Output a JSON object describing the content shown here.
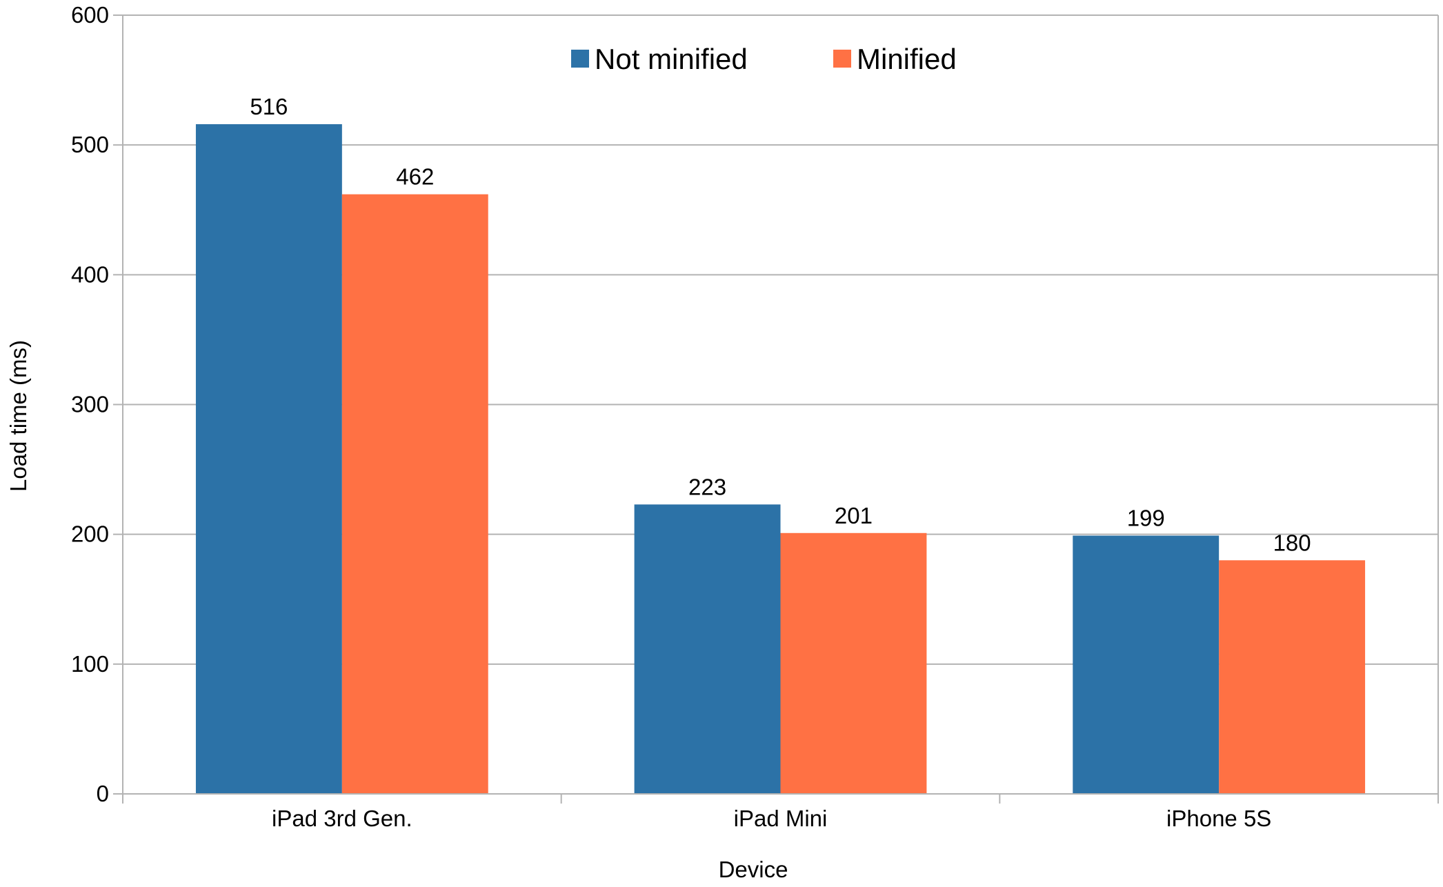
{
  "chart_data": {
    "type": "bar",
    "title": "",
    "xlabel": "Device",
    "ylabel": "Load time (ms)",
    "categories": [
      "iPad 3rd Gen.",
      "iPad Mini",
      "iPhone 5S"
    ],
    "series": [
      {
        "name": "Not minified",
        "values": [
          516,
          223,
          199
        ],
        "color": "#2c72a7"
      },
      {
        "name": "Minified",
        "values": [
          462,
          201,
          180
        ],
        "color": "#ff7144"
      }
    ],
    "ylim": [
      0,
      600
    ],
    "yticks": [
      0,
      100,
      200,
      300,
      400,
      500,
      600
    ],
    "grid": true,
    "legend_position": "top-center"
  }
}
